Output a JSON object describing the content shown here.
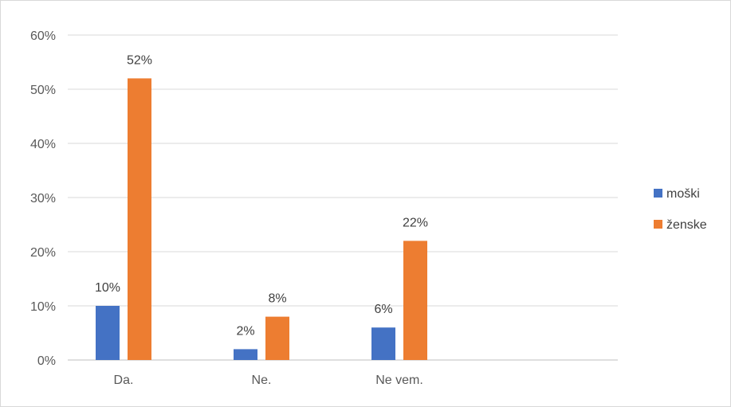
{
  "chart_data": {
    "type": "bar",
    "categories": [
      "Da.",
      "Ne.",
      "Ne vem."
    ],
    "series": [
      {
        "name": "moški",
        "values": [
          10,
          2,
          6
        ],
        "labels": [
          "10%",
          "2%",
          "6%"
        ],
        "color": "#4472c4"
      },
      {
        "name": "ženske",
        "values": [
          52,
          8,
          22
        ],
        "labels": [
          "52%",
          "8%",
          "22%"
        ],
        "color": "#ed7d31"
      }
    ],
    "y_ticks": [
      "0%",
      "10%",
      "20%",
      "30%",
      "40%",
      "50%",
      "60%"
    ],
    "ylim": [
      0,
      60
    ],
    "grid": true,
    "legend_position": "right",
    "title": "",
    "xlabel": "",
    "ylabel": ""
  }
}
